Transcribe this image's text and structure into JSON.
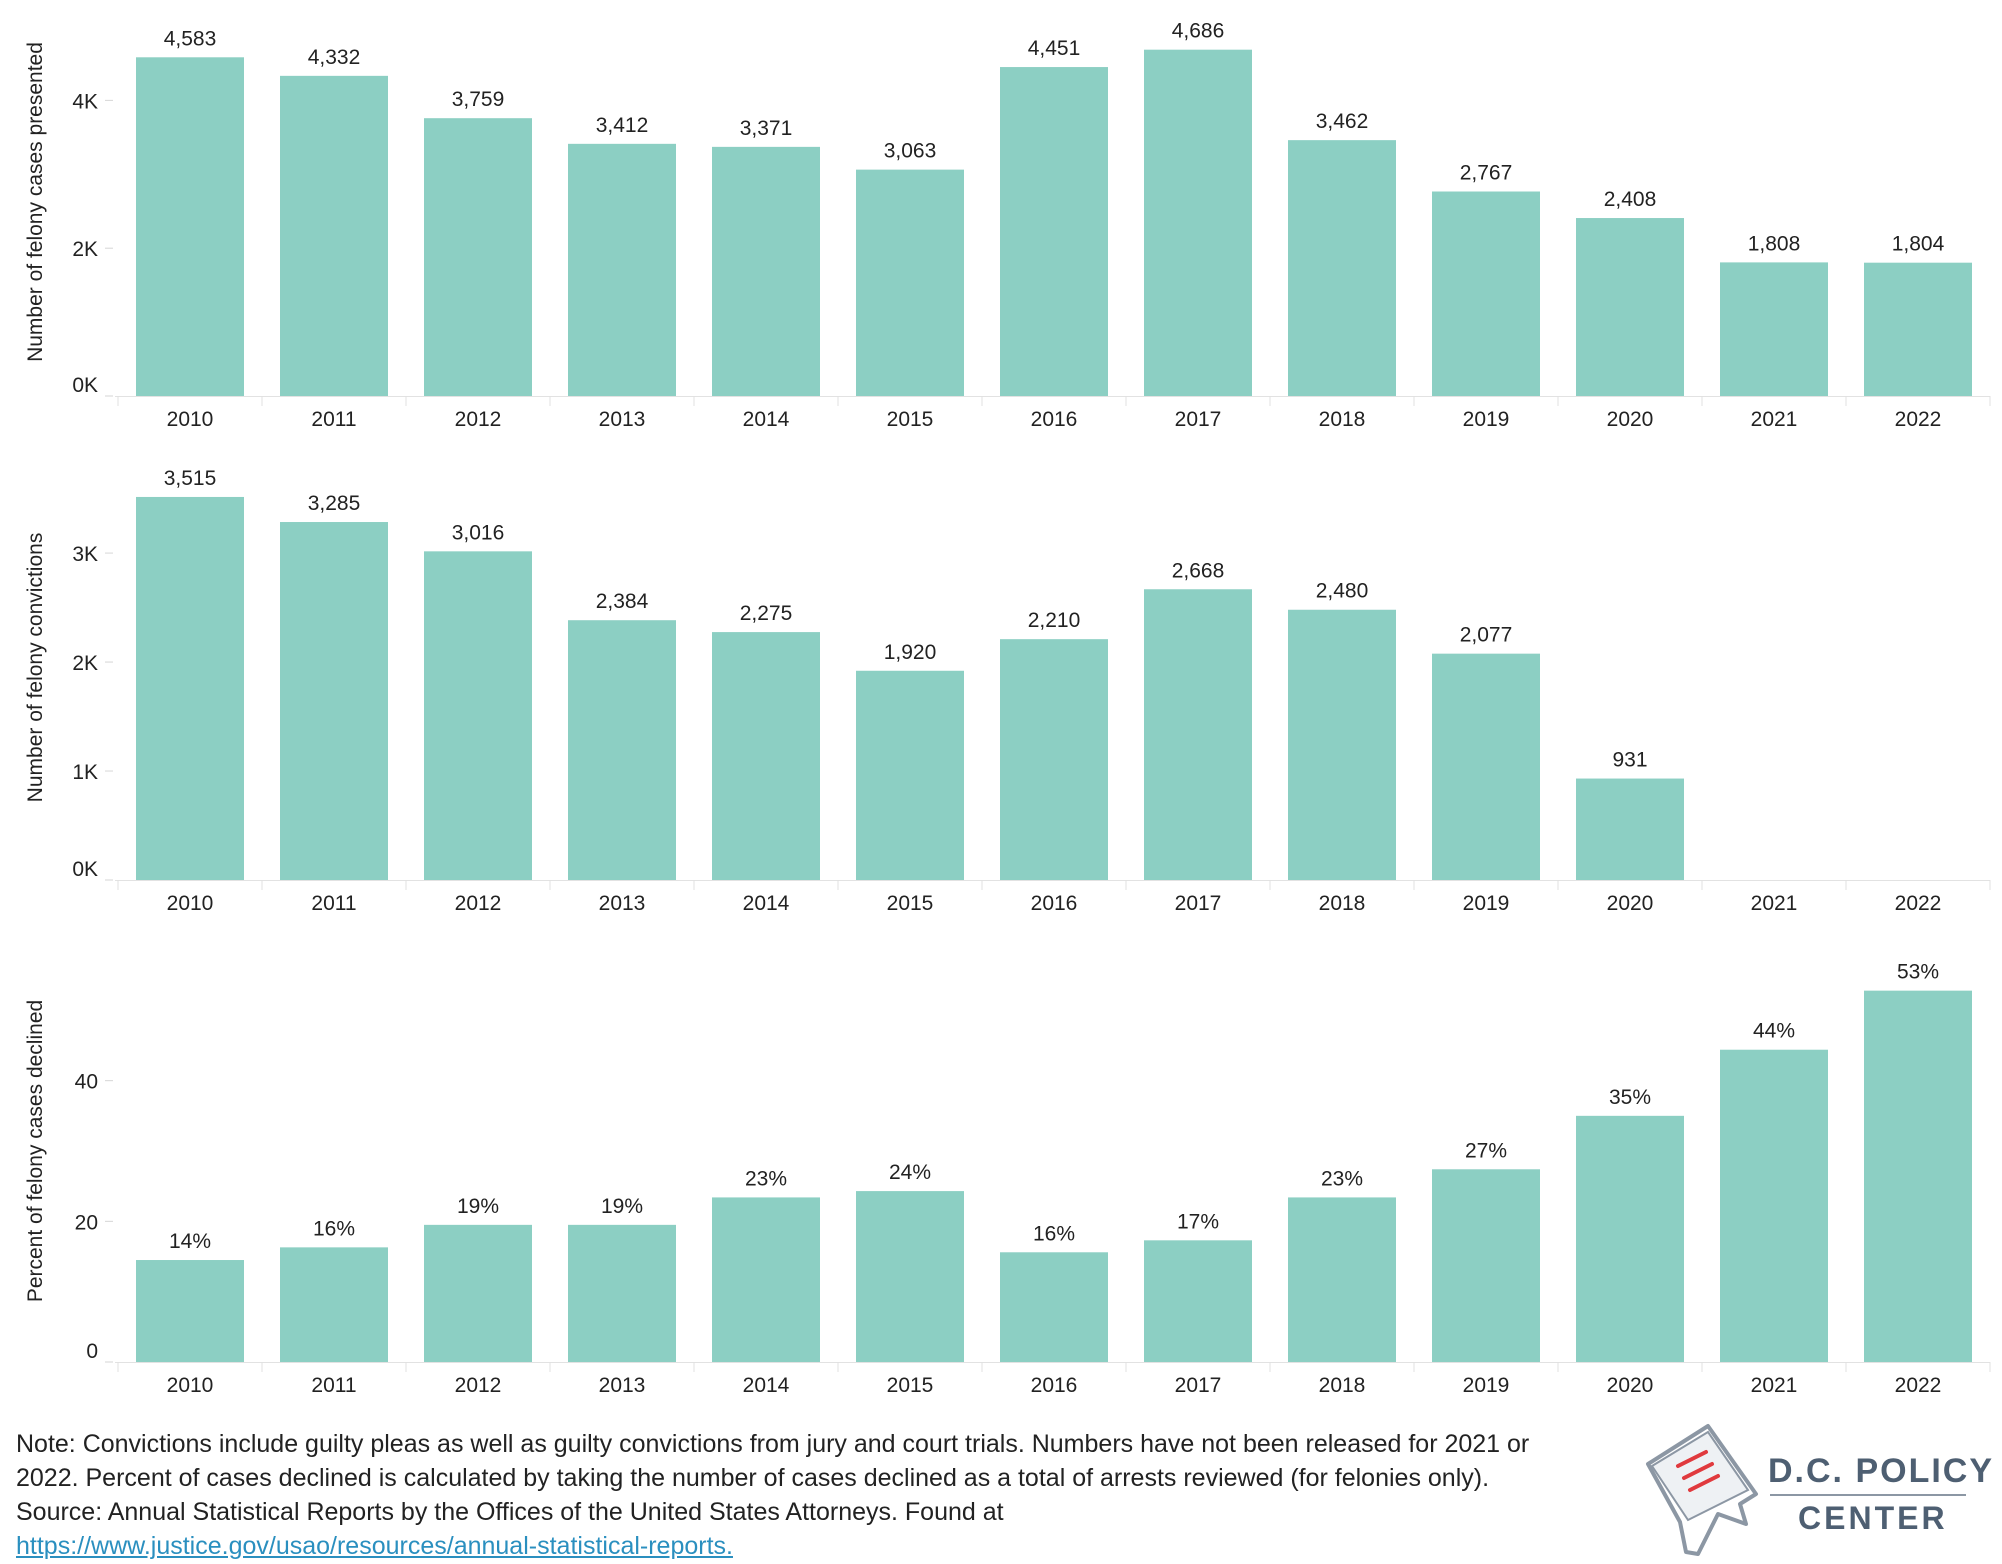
{
  "chart_data": [
    {
      "type": "bar",
      "ylabel": "Number of felony cases presented",
      "categories": [
        "2010",
        "2011",
        "2012",
        "2013",
        "2014",
        "2015",
        "2016",
        "2017",
        "2018",
        "2019",
        "2020",
        "2021",
        "2022"
      ],
      "values": [
        4583,
        4332,
        3759,
        3412,
        3371,
        3063,
        4451,
        4686,
        3462,
        2767,
        2408,
        1808,
        1804
      ],
      "value_labels": [
        "4,583",
        "4,332",
        "3,759",
        "3,412",
        "3,371",
        "3,063",
        "4,451",
        "4,686",
        "3,462",
        "2,767",
        "2,408",
        "1,808",
        "1,804"
      ],
      "yticks": [
        0,
        2000,
        4000
      ],
      "ytick_labels": [
        "0K",
        "2K",
        "4K"
      ],
      "ylim": [
        0,
        5250
      ],
      "bar_color": "#8ccfc3"
    },
    {
      "type": "bar",
      "ylabel": "Number of felony convictions",
      "categories": [
        "2010",
        "2011",
        "2012",
        "2013",
        "2014",
        "2015",
        "2016",
        "2017",
        "2018",
        "2019",
        "2020",
        "2021",
        "2022"
      ],
      "values": [
        3515,
        3285,
        3016,
        2384,
        2275,
        1920,
        2210,
        2668,
        2480,
        2077,
        931,
        null,
        null
      ],
      "value_labels": [
        "3,515",
        "3,285",
        "3,016",
        "2,384",
        "2,275",
        "1,920",
        "2,210",
        "2,668",
        "2,480",
        "2,077",
        "931",
        "",
        ""
      ],
      "yticks": [
        0,
        1000,
        2000,
        3000
      ],
      "ytick_labels": [
        "0K",
        "1K",
        "2K",
        "3K"
      ],
      "ylim": [
        0,
        3900
      ],
      "bar_color": "#8ccfc3"
    },
    {
      "type": "bar",
      "ylabel": "Percent of felony cases declined",
      "categories": [
        "2010",
        "2011",
        "2012",
        "2013",
        "2014",
        "2015",
        "2016",
        "2017",
        "2018",
        "2019",
        "2020",
        "2021",
        "2022"
      ],
      "values": [
        14.5,
        16.3,
        19.5,
        19.5,
        23.4,
        24.3,
        15.6,
        17.3,
        23.4,
        27.4,
        35.0,
        44.4,
        52.8
      ],
      "value_labels": [
        "14%",
        "16%",
        "19%",
        "19%",
        "23%",
        "24%",
        "16%",
        "17%",
        "23%",
        "27%",
        "35%",
        "44%",
        "53%"
      ],
      "yticks": [
        0,
        20,
        40
      ],
      "ytick_labels": [
        "0",
        "20",
        "40"
      ],
      "ylim": [
        0,
        60
      ],
      "bar_color": "#8ccfc3"
    }
  ],
  "footnote": {
    "line1": "Note: Convictions include guilty pleas as well as guilty convictions from jury and court trials. Numbers have not been released for 2021 or",
    "line2": "2022. Percent of cases declined is calculated by taking the number of cases declined as a total of arrests reviewed (for felonies only).",
    "line3": "Source: Annual Statistical Reports by the Offices of the United States Attorneys. Found at",
    "link": "https://www.justice.gov/usao/resources/annual-statistical-reports."
  },
  "logo": {
    "line1": "D.C. POLICY",
    "line2": "CENTER",
    "text_color": "#4e5f72",
    "accent_color": "#e03a3e"
  }
}
